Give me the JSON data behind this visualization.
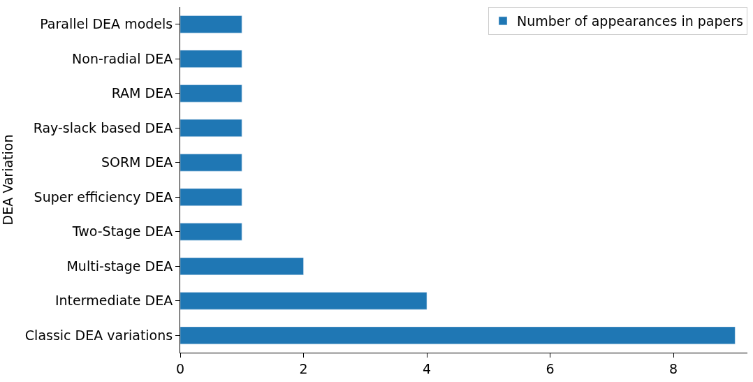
{
  "chart_data": {
    "type": "bar",
    "orientation": "horizontal",
    "ylabel": "DEA Variation",
    "categories": [
      "Parallel DEA models",
      "Non-radial DEA",
      "RAM DEA",
      "Ray-slack based DEA",
      "SORM DEA",
      "Super efficiency DEA",
      "Two-Stage DEA",
      "Multi-stage DEA",
      "Intermediate DEA",
      "Classic DEA variations"
    ],
    "series": [
      {
        "name": "Number of appearances in papers",
        "color": "#1f77b4",
        "values": [
          1,
          1,
          1,
          1,
          1,
          1,
          1,
          2,
          4,
          9
        ]
      }
    ],
    "xlim": [
      0,
      9.2
    ],
    "xticks": [
      0,
      2,
      4,
      6,
      8
    ],
    "legend": "top right"
  }
}
